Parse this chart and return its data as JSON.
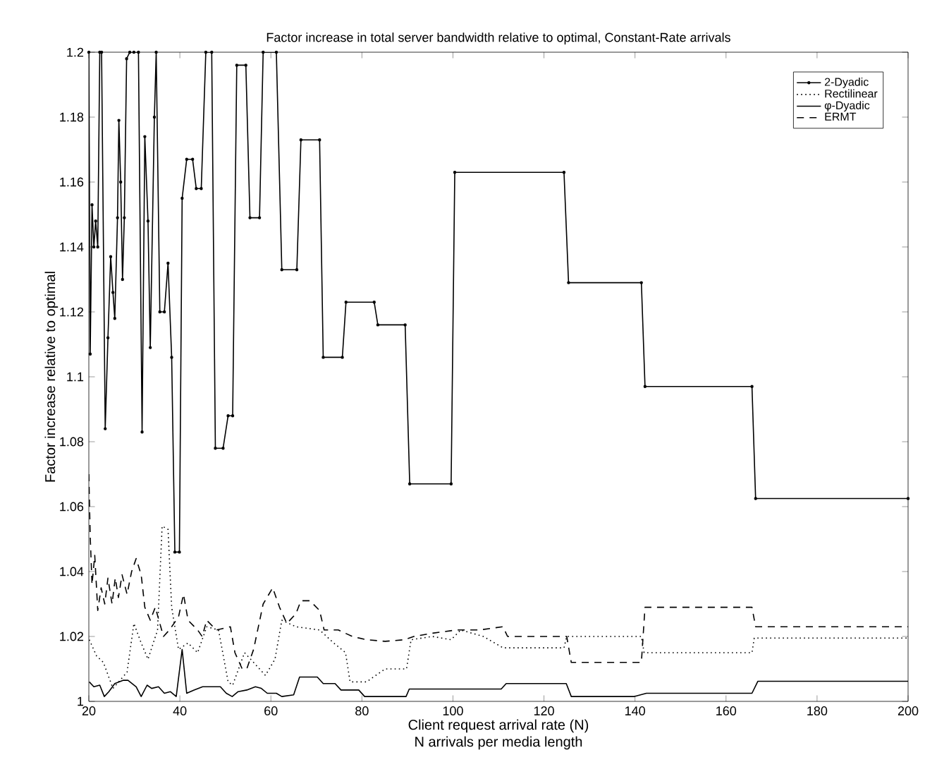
{
  "chart_data": {
    "type": "line",
    "title": "Factor increase in total server bandwidth relative to optimal, Constant-Rate arrivals",
    "xlabel": "Client request arrival rate (N)\nN arrivals per media length",
    "ylabel": "Factor increase relative to optimal",
    "xlim": [
      20,
      200
    ],
    "ylim": [
      1,
      1.2
    ],
    "xticks": [
      20,
      40,
      60,
      80,
      100,
      120,
      140,
      160,
      180,
      200
    ],
    "yticks": [
      1,
      1.02,
      1.04,
      1.06,
      1.08,
      1.1,
      1.12,
      1.14,
      1.16,
      1.18,
      1.2
    ],
    "legend": "top right",
    "grid": false,
    "series": [
      {
        "name": "2-Dyadic",
        "color": "#000000",
        "marker": "circle",
        "line_style": "solid",
        "x": [
          20.0,
          20.3,
          20.7,
          21.1,
          21.5,
          21.96,
          22.4,
          22.8,
          23.6,
          24.2,
          24.8,
          25.3,
          25.7,
          26.3,
          26.6,
          27.0,
          27.4,
          27.8,
          28.3,
          29.0,
          29.9,
          30.9,
          31.7,
          32.3,
          33.0,
          33.5,
          34.4,
          34.8,
          35.6,
          36.6,
          37.4,
          38.2,
          38.9,
          39.9,
          40.5,
          41.5,
          42.8,
          43.6,
          44.7,
          45.7,
          47.0,
          47.8,
          49.5,
          50.6,
          51.6,
          52.5,
          54.5,
          55.4,
          57.5,
          58.3,
          61.2,
          62.4,
          65.7,
          66.6,
          70.7,
          71.5,
          75.7,
          76.5,
          82.7,
          83.5,
          89.5,
          90.5,
          99.6,
          100.4,
          124.4,
          125.4,
          141.4,
          142.2,
          165.7,
          166.5,
          200
        ],
        "values": [
          1.2,
          1.107,
          1.153,
          1.14,
          1.148,
          1.14,
          1.2,
          1.2,
          1.084,
          1.112,
          1.137,
          1.126,
          1.118,
          1.149,
          1.179,
          1.16,
          1.13,
          1.149,
          1.198,
          1.2,
          1.2,
          1.2,
          1.083,
          1.174,
          1.148,
          1.109,
          1.18,
          1.2,
          1.12,
          1.12,
          1.135,
          1.106,
          1.046,
          1.046,
          1.155,
          1.167,
          1.167,
          1.158,
          1.158,
          1.2,
          1.2,
          1.078,
          1.078,
          1.088,
          1.088,
          1.196,
          1.196,
          1.149,
          1.149,
          1.2,
          1.2,
          1.133,
          1.133,
          1.173,
          1.173,
          1.106,
          1.106,
          1.123,
          1.123,
          1.116,
          1.116,
          1.067,
          1.067,
          1.163,
          1.163,
          1.129,
          1.129,
          1.097,
          1.097,
          1.0625,
          1.0625
        ]
      },
      {
        "name": "Rectilinear",
        "color": "#000000",
        "marker": "none",
        "line_style": "dotted",
        "x": [
          20.1,
          21.7,
          23.2,
          25.3,
          28.4,
          29.9,
          31.5,
          33.0,
          35.1,
          36.1,
          37.4,
          38.2,
          39.7,
          41.8,
          43.9,
          45.9,
          48.5,
          50.6,
          51.6,
          54.2,
          56.2,
          58.8,
          60.9,
          62.4,
          65.5,
          70.7,
          73.8,
          76.4,
          77.4,
          81.0,
          85.1,
          89.8,
          90.8,
          95.5,
          99.6,
          101.7,
          106.7,
          111,
          124.4,
          125,
          141.4,
          142,
          165.7,
          166.2,
          200
        ],
        "values": [
          1.019,
          1.014,
          1.012,
          1.004,
          1.009,
          1.024,
          1.018,
          1.013,
          1.022,
          1.054,
          1.053,
          1.029,
          1.016,
          1.018,
          1.015,
          1.023,
          1.022,
          1.006,
          1.005,
          1.015,
          1.012,
          1.008,
          1.013,
          1.025,
          1.023,
          1.022,
          1.018,
          1.015,
          1.006,
          1.006,
          1.01,
          1.01,
          1.019,
          1.02,
          1.019,
          1.022,
          1.02,
          1.0165,
          1.0165,
          1.02,
          1.02,
          1.015,
          1.015,
          1.0195,
          1.0195
        ]
      },
      {
        "name": "φ-Dyadic",
        "color": "#000000",
        "marker": "none",
        "line_style": "solid",
        "x": [
          20.1,
          21.1,
          22.4,
          23.4,
          24.4,
          25.7,
          27.6,
          28.6,
          30.4,
          31.5,
          32.8,
          33.8,
          35.3,
          36.6,
          37.9,
          39.2,
          40.5,
          41.5,
          43.1,
          45,
          47,
          48.9,
          50.2,
          51.5,
          52.8,
          54.7,
          56.6,
          57.9,
          59.2,
          61.2,
          62.4,
          65,
          66.3,
          70.2,
          71.5,
          74.1,
          75.4,
          79.3,
          80.6,
          84.5,
          89.7,
          90.4,
          110.6,
          111.7,
          124.9,
          126,
          139.9,
          142.5,
          165.7,
          167,
          200
        ],
        "values": [
          1.006,
          1.0045,
          1.005,
          1.0015,
          1.003,
          1.0055,
          1.0065,
          1.0065,
          1.0045,
          1.0015,
          1.005,
          1.004,
          1.0045,
          1.0025,
          1.003,
          1.0015,
          1.016,
          1.0025,
          1.0035,
          1.0045,
          1.0045,
          1.0045,
          1.0025,
          1.0015,
          1.003,
          1.0035,
          1.0045,
          1.004,
          1.0025,
          1.0025,
          1.0015,
          1.002,
          1.0075,
          1.0075,
          1.0055,
          1.0055,
          1.0035,
          1.0035,
          1.0015,
          1.0015,
          1.0015,
          1.0038,
          1.0038,
          1.0055,
          1.0055,
          1.0015,
          1.0015,
          1.0025,
          1.0025,
          1.0062,
          1.0062
        ]
      },
      {
        "name": "ERMT",
        "color": "#000000",
        "marker": "none",
        "line_style": "dashed",
        "x": [
          20.0,
          20.3,
          20.7,
          21.3,
          21.96,
          22.7,
          23.5,
          24.2,
          25.1,
          25.8,
          26.5,
          27.3,
          28.4,
          29.4,
          30.4,
          31.5,
          32.3,
          33.5,
          34.6,
          35.4,
          36.4,
          37.7,
          39.7,
          40.8,
          41.8,
          43.9,
          44.9,
          45.9,
          48.0,
          51.1,
          52.1,
          53.7,
          54.7,
          56.2,
          58.3,
          60.4,
          61.9,
          63.5,
          65.5,
          66.6,
          68.6,
          70.7,
          71.7,
          74.8,
          77.9,
          81.0,
          85.1,
          89.3,
          91.4,
          95.5,
          100.7,
          105.8,
          111,
          112,
          125,
          126,
          141.4,
          142.2,
          165.7,
          166.5,
          200
        ],
        "values": [
          1.07,
          1.051,
          1.036,
          1.045,
          1.028,
          1.035,
          1.03,
          1.038,
          1.03,
          1.038,
          1.032,
          1.039,
          1.033,
          1.04,
          1.044,
          1.039,
          1.029,
          1.025,
          1.029,
          1.025,
          1.02,
          1.022,
          1.026,
          1.033,
          1.025,
          1.022,
          1.02,
          1.025,
          1.022,
          1.023,
          1.015,
          1.01,
          1.01,
          1.016,
          1.03,
          1.035,
          1.029,
          1.024,
          1.027,
          1.031,
          1.031,
          1.028,
          1.022,
          1.022,
          1.02,
          1.019,
          1.0185,
          1.019,
          1.02,
          1.021,
          1.022,
          1.022,
          1.023,
          1.02,
          1.02,
          1.012,
          1.012,
          1.029,
          1.029,
          1.023,
          1.023
        ]
      }
    ]
  }
}
